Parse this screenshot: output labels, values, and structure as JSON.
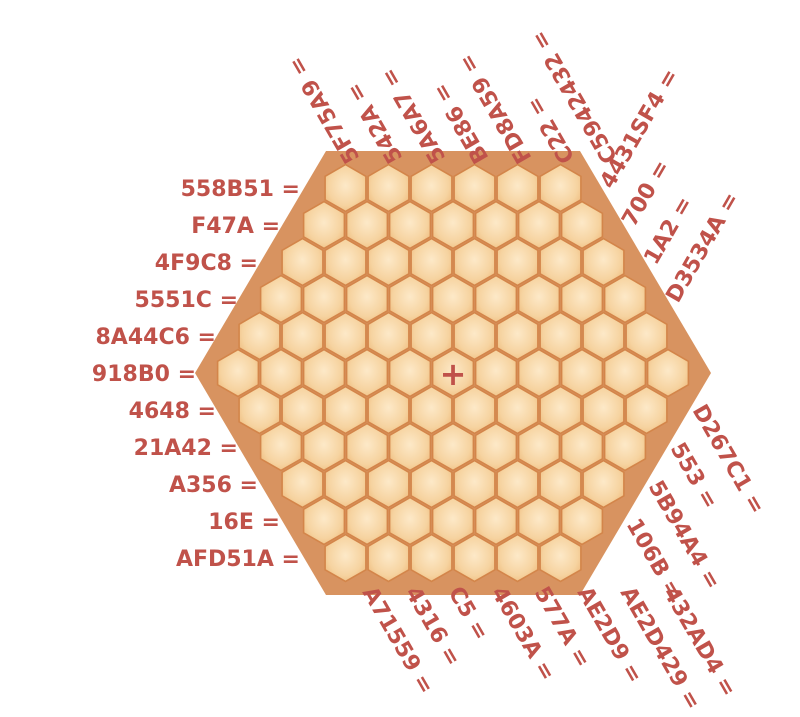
{
  "puzzle": {
    "center_marker": "+",
    "left_clues": [
      "558B51 =",
      "F47A =",
      "4F9C8 =",
      "5551C =",
      "8A44C6 =",
      "918B0 =",
      "4648 =",
      "21A42 =",
      "A356 =",
      "16E =",
      "AFD51A ="
    ],
    "top_clues": [
      "5F75A9 =",
      "542A =",
      "5A6A7 =",
      "BE86 =",
      "FD8A59 =",
      "C22 =",
      "C5942432 ="
    ],
    "upper_right_clues": [
      "4431SF4 =",
      "700 =",
      "1A2 =",
      "D3534A ="
    ],
    "lower_right_clues": [
      "D267C1 =",
      "553 =",
      "5B94A4 =",
      "106B ="
    ],
    "bottom_clues": [
      "A71559 =",
      "4316 =",
      "C5 =",
      "4603A =",
      "577A =",
      "AE2D9 =",
      "AE2D429 =",
      "432AD4 ="
    ]
  },
  "colors": {
    "clue_text": "#c0524a",
    "cell_fill": "#f4cc92",
    "cell_outline": "#d3854a",
    "marker": "#c0524a"
  }
}
